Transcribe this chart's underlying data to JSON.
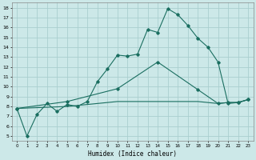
{
  "xlabel": "Humidex (Indice chaleur)",
  "background_color": "#cce8e8",
  "grid_color": "#aacfcf",
  "line_color": "#1a6e60",
  "xlim": [
    -0.5,
    23.5
  ],
  "ylim": [
    4.5,
    18.5
  ],
  "yticks": [
    5,
    6,
    7,
    8,
    9,
    10,
    11,
    12,
    13,
    14,
    15,
    16,
    17,
    18
  ],
  "xticks": [
    0,
    1,
    2,
    3,
    4,
    5,
    6,
    7,
    8,
    9,
    10,
    11,
    12,
    13,
    14,
    15,
    16,
    17,
    18,
    19,
    20,
    21,
    22,
    23
  ],
  "line1_x": [
    0,
    1,
    2,
    3,
    4,
    5,
    6,
    7,
    8,
    9,
    10,
    11,
    12,
    13,
    14,
    15,
    16,
    17,
    18,
    19,
    20,
    21,
    22,
    23
  ],
  "line1_y": [
    7.8,
    5.0,
    7.2,
    8.3,
    7.5,
    8.2,
    8.0,
    8.5,
    10.5,
    11.8,
    13.2,
    13.1,
    13.3,
    15.8,
    15.5,
    17.9,
    17.3,
    16.2,
    14.9,
    14.0,
    12.5,
    8.3,
    8.4,
    8.7
  ],
  "line2_x": [
    0,
    5,
    10,
    14,
    18,
    20,
    21,
    22,
    23
  ],
  "line2_y": [
    7.8,
    8.5,
    9.8,
    12.5,
    9.7,
    8.3,
    8.4,
    8.4,
    8.7
  ],
  "line3_x": [
    0,
    5,
    10,
    14,
    18,
    20,
    21,
    22,
    23
  ],
  "line3_y": [
    7.8,
    8.0,
    8.5,
    8.5,
    8.5,
    8.3,
    8.4,
    8.4,
    8.7
  ]
}
